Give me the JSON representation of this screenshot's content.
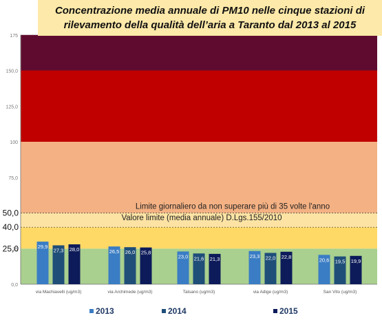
{
  "title_lines": [
    "Concentrazione media annuale di PM10 nelle cinque stazioni di",
    "rilevamento della qualità dell’aria a Taranto dal 2013 al 2015"
  ],
  "colors": {
    "title_bg": "#fde9a9",
    "band_0_25": "#a9d08e",
    "band_25_40": "#ffd966",
    "band_40_50": "#fce3a4",
    "band_50_100": "#f4b183",
    "band_100_150": "#c00000",
    "band_150_175": "#5f0b2f",
    "series": [
      "#3a7dc4",
      "#1f4e79",
      "#0d1b5a"
    ]
  },
  "chart_data": {
    "type": "bar",
    "title": "Concentrazione media annuale di PM10 nelle cinque stazioni di rilevamento della qualità dell’aria a Taranto dal 2013 al 2015",
    "categories": [
      "via Machiavelli (ug/m3)",
      "via Archimede (ug/m3)",
      "Talsano (ug/m3)",
      "via Adige (ug/m3)",
      "San Vito (ug/m3)"
    ],
    "series": [
      {
        "name": "2013",
        "values": [
          29.9,
          26.5,
          23.0,
          23.3,
          20.6
        ],
        "labels": [
          "29,9",
          "26,5",
          "23,0",
          "23,3",
          "20,6"
        ]
      },
      {
        "name": "2014",
        "values": [
          27.3,
          26.0,
          21.6,
          22.0,
          19.5
        ],
        "labels": [
          "27,3",
          "26,0",
          "21,6",
          "22,0",
          "19,5"
        ]
      },
      {
        "name": "2015",
        "values": [
          28.0,
          25.8,
          21.3,
          22.8,
          19.9
        ],
        "labels": [
          "28,0",
          "25,8",
          "21,3",
          "22,8",
          "19,9"
        ]
      }
    ],
    "ylim": [
      0,
      175
    ],
    "yticks_small": [
      {
        "value": 0,
        "label": "0,0"
      },
      {
        "value": 25,
        "label": "25"
      },
      {
        "value": 75,
        "label": "75,0"
      },
      {
        "value": 100,
        "label": "100"
      },
      {
        "value": 125,
        "label": "125,0"
      },
      {
        "value": 150,
        "label": "150,0"
      },
      {
        "value": 175,
        "label": "175"
      }
    ],
    "yticks_large": [
      {
        "value": 50,
        "label": "50,0"
      },
      {
        "value": 40,
        "label": "40,0"
      },
      {
        "value": 25,
        "label": "25,0"
      }
    ],
    "bands": [
      {
        "from": 0,
        "to": 25
      },
      {
        "from": 25,
        "to": 40
      },
      {
        "from": 40,
        "to": 50
      },
      {
        "from": 50,
        "to": 100
      },
      {
        "from": 100,
        "to": 150
      },
      {
        "from": 150,
        "to": 175
      }
    ],
    "annotations": [
      {
        "value": 50,
        "text": "Limite giornaliero da non superare più di 35 volte l'anno"
      },
      {
        "value": 40,
        "text": "Valore limite (media annuale) D.Lgs.155/2010"
      }
    ],
    "legend": [
      "2013",
      "2014",
      "2015"
    ],
    "legend_position": "bottom",
    "grid": false
  }
}
